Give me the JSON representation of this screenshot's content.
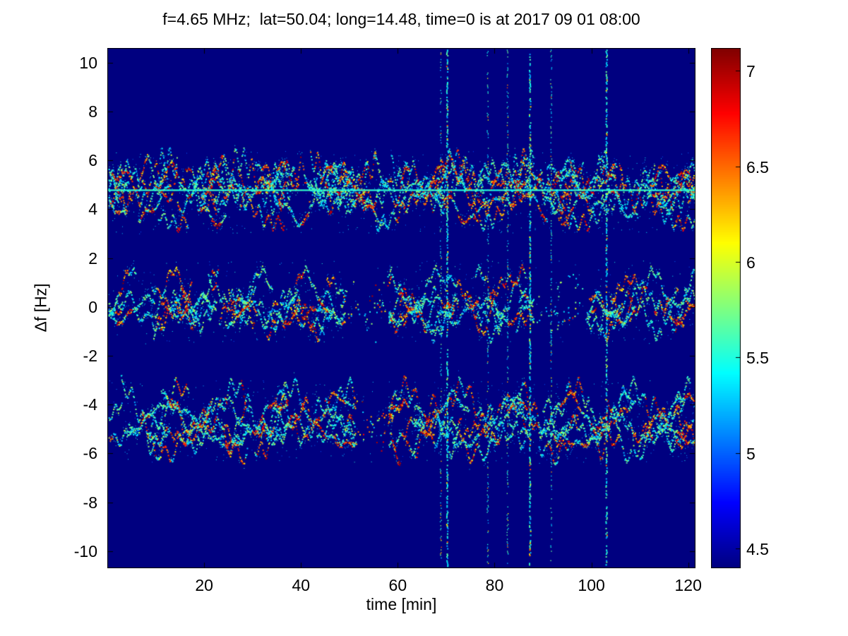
{
  "chart_data": {
    "type": "heatmap",
    "title": "f=4.65 MHz;  lat=50.04; long=14.48, time=0 is at 2017 09 01 08:00",
    "xlabel": "time [min]",
    "ylabel": "Δf [Hz]",
    "xlim": [
      0,
      121.5
    ],
    "ylim": [
      -10.7,
      10.6
    ],
    "xticks": [
      20,
      40,
      60,
      80,
      100,
      120
    ],
    "yticks": [
      10,
      8,
      6,
      4,
      2,
      0,
      -2,
      -4,
      -6,
      -8,
      -10
    ],
    "grid": false,
    "colormap": "jet",
    "colorbar": {
      "position": "right",
      "min": 4.4,
      "max": 7.12,
      "ticks": [
        7,
        6.5,
        6,
        5.5,
        5,
        4.5
      ]
    },
    "background_value": 4.4,
    "content": {
      "description": "Doppler spectrogram of a 4.65 MHz HF signal over 120 minutes. Dark blue background at the colormap minimum (~4.4). Three horizontal wavy Doppler-trace bands (multimode propagation) centered near +4.7 Hz, +0.2 Hz and -4.7 Hz, drawn as meandering speckled traces in cyan/green with clustered yellow-red hotspots. A thin continuous cyan carrier line runs across the full width at ~+4.8 Hz. Several vertical broadband interference stripes span the full frequency range.",
      "doppler_bands": [
        {
          "center_hz": 4.7,
          "spread_hz": 1.4,
          "strands": 8,
          "gaps": []
        },
        {
          "center_hz": 0.2,
          "spread_hz": 1.1,
          "strands": 6,
          "gaps": [
            [
              49,
              58
            ],
            [
              88,
              99
            ]
          ]
        },
        {
          "center_hz": -4.7,
          "spread_hz": 1.3,
          "strands": 7,
          "gaps": [
            [
              51,
              58
            ]
          ]
        }
      ],
      "carrier_line_hz": 4.8,
      "interference_lines": [
        {
          "t": 68.8,
          "strong": false
        },
        {
          "t": 70.1,
          "strong": true
        },
        {
          "t": 78.5,
          "strong": false
        },
        {
          "t": 82.6,
          "strong": false
        },
        {
          "t": 87.2,
          "strong": true
        },
        {
          "t": 91.6,
          "strong": false
        },
        {
          "t": 103.0,
          "strong": true
        }
      ]
    }
  }
}
